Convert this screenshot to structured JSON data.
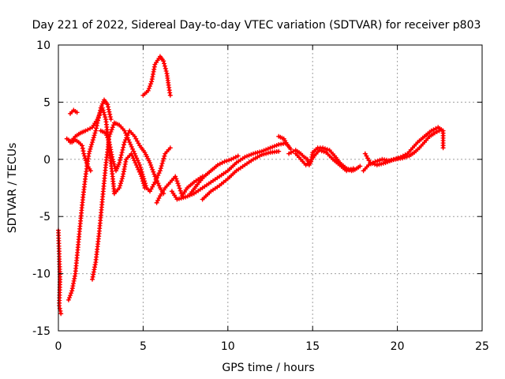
{
  "chart_data": {
    "type": "scatter",
    "title": "Day 221 of 2022, Sidereal Day-to-day VTEC variation (SDTVAR) for receiver p803",
    "xlabel": "GPS time / hours",
    "ylabel": "SDTVAR / TECUs",
    "xlim": [
      0,
      25
    ],
    "ylim": [
      -15,
      10
    ],
    "xticks": [
      0,
      5,
      10,
      15,
      20,
      25
    ],
    "yticks": [
      -15,
      -10,
      -5,
      0,
      5,
      10
    ],
    "xtick_labels": [
      "0",
      "5",
      "10",
      "15",
      "20",
      "25"
    ],
    "ytick_labels": [
      "-15",
      "-10",
      "-5",
      "0",
      "5",
      "10"
    ],
    "grid": true,
    "marker": "plus",
    "color": "#ff0000",
    "series": [
      {
        "name": "arc-early-1",
        "points": [
          [
            0.0,
            -6.2
          ],
          [
            0.05,
            -8.5
          ],
          [
            0.1,
            -10.5
          ],
          [
            0.05,
            -12.8
          ],
          [
            0.15,
            -13.5
          ]
        ]
      },
      {
        "name": "arc-early-2",
        "points": [
          [
            0.6,
            -12.3
          ],
          [
            0.8,
            -11.5
          ],
          [
            1.0,
            -10.0
          ],
          [
            1.2,
            -7.0
          ],
          [
            1.4,
            -4.0
          ],
          [
            1.6,
            -1.5
          ],
          [
            1.8,
            0.5
          ],
          [
            2.0,
            1.5
          ],
          [
            2.2,
            2.5
          ],
          [
            2.5,
            4.5
          ],
          [
            2.7,
            5.2
          ],
          [
            2.9,
            4.8
          ],
          [
            3.1,
            3.5
          ]
        ]
      },
      {
        "name": "arc-early-3",
        "points": [
          [
            0.5,
            1.8
          ],
          [
            0.8,
            1.5
          ],
          [
            1.0,
            1.7
          ],
          [
            1.2,
            1.5
          ],
          [
            1.4,
            1.2
          ],
          [
            1.5,
            0.5
          ],
          [
            1.7,
            -0.5
          ],
          [
            1.9,
            -1.0
          ]
        ]
      },
      {
        "name": "arc-early-4",
        "points": [
          [
            0.7,
            4.0
          ],
          [
            0.9,
            4.3
          ],
          [
            1.1,
            4.1
          ]
        ]
      },
      {
        "name": "arc-early-5",
        "points": [
          [
            0.7,
            1.5
          ],
          [
            1.0,
            2.0
          ],
          [
            1.3,
            2.3
          ],
          [
            1.6,
            2.5
          ],
          [
            2.0,
            2.8
          ],
          [
            2.3,
            3.5
          ],
          [
            2.6,
            4.5
          ],
          [
            2.8,
            3.5
          ],
          [
            3.0,
            1.0
          ],
          [
            3.2,
            -1.5
          ],
          [
            3.3,
            -3.0
          ],
          [
            3.6,
            -2.5
          ],
          [
            3.8,
            -1.5
          ],
          [
            4.0,
            0.0
          ],
          [
            4.3,
            0.5
          ],
          [
            4.6,
            -0.5
          ],
          [
            4.9,
            -1.5
          ],
          [
            5.1,
            -2.5
          ]
        ]
      },
      {
        "name": "arc-early-6",
        "points": [
          [
            2.0,
            -10.5
          ],
          [
            2.2,
            -9.0
          ],
          [
            2.4,
            -6.5
          ],
          [
            2.6,
            -3.5
          ],
          [
            2.8,
            -0.5
          ],
          [
            3.0,
            2.0
          ],
          [
            3.3,
            3.2
          ],
          [
            3.6,
            3.0
          ],
          [
            3.9,
            2.5
          ],
          [
            4.2,
            1.5
          ],
          [
            4.5,
            0.5
          ],
          [
            4.8,
            -0.5
          ],
          [
            5.0,
            -1.5
          ],
          [
            5.2,
            -2.5
          ],
          [
            5.4,
            -2.8
          ],
          [
            5.7,
            -2.0
          ],
          [
            6.0,
            -1.0
          ],
          [
            6.3,
            0.5
          ],
          [
            6.6,
            1.0
          ]
        ]
      },
      {
        "name": "arc-early-7",
        "points": [
          [
            2.5,
            2.5
          ],
          [
            2.8,
            2.3
          ],
          [
            3.0,
            1.5
          ],
          [
            3.2,
            0.0
          ],
          [
            3.4,
            -1.0
          ],
          [
            3.6,
            -0.3
          ],
          [
            3.9,
            1.5
          ],
          [
            4.2,
            2.5
          ],
          [
            4.5,
            2.0
          ],
          [
            4.8,
            1.2
          ],
          [
            5.1,
            0.6
          ],
          [
            5.4,
            -0.3
          ],
          [
            5.7,
            -1.5
          ],
          [
            6.0,
            -2.5
          ],
          [
            6.2,
            -3.0
          ]
        ]
      },
      {
        "name": "arc-mid-1",
        "points": [
          [
            5.0,
            5.6
          ],
          [
            5.3,
            6.0
          ],
          [
            5.5,
            6.8
          ],
          [
            5.7,
            8.3
          ],
          [
            6.0,
            9.0
          ],
          [
            6.2,
            8.6
          ],
          [
            6.4,
            7.5
          ],
          [
            6.5,
            6.5
          ],
          [
            6.6,
            5.6
          ]
        ]
      },
      {
        "name": "arc-mid-2",
        "points": [
          [
            5.8,
            -3.8
          ],
          [
            6.0,
            -3.2
          ],
          [
            6.3,
            -2.5
          ],
          [
            6.6,
            -2.0
          ],
          [
            6.9,
            -1.5
          ],
          [
            7.1,
            -2.3
          ],
          [
            7.3,
            -3.2
          ],
          [
            7.6,
            -2.5
          ],
          [
            8.0,
            -2.0
          ],
          [
            8.5,
            -1.5
          ]
        ]
      },
      {
        "name": "arc-mid-3",
        "points": [
          [
            6.7,
            -2.8
          ],
          [
            7.0,
            -3.5
          ],
          [
            7.5,
            -3.3
          ],
          [
            8.0,
            -3.0
          ],
          [
            8.5,
            -2.5
          ],
          [
            9.0,
            -2.0
          ],
          [
            9.5,
            -1.5
          ],
          [
            10.0,
            -1.0
          ],
          [
            10.5,
            -0.3
          ],
          [
            11.0,
            0.2
          ],
          [
            11.5,
            0.5
          ],
          [
            12.0,
            0.7
          ],
          [
            12.5,
            1.0
          ],
          [
            13.0,
            1.3
          ],
          [
            13.4,
            1.4
          ]
        ]
      },
      {
        "name": "arc-mid-4",
        "points": [
          [
            7.8,
            -3.0
          ],
          [
            8.2,
            -2.2
          ],
          [
            8.6,
            -1.5
          ],
          [
            9.0,
            -1.0
          ],
          [
            9.4,
            -0.5
          ],
          [
            9.8,
            -0.2
          ],
          [
            10.2,
            0.0
          ],
          [
            10.6,
            0.3
          ]
        ]
      },
      {
        "name": "arc-mid-5",
        "points": [
          [
            8.5,
            -3.5
          ],
          [
            9.0,
            -2.8
          ],
          [
            9.5,
            -2.3
          ],
          [
            10.0,
            -1.7
          ],
          [
            10.5,
            -1.0
          ],
          [
            11.0,
            -0.5
          ],
          [
            11.5,
            0.0
          ],
          [
            12.0,
            0.4
          ],
          [
            12.5,
            0.6
          ],
          [
            13.0,
            0.7
          ]
        ]
      },
      {
        "name": "arc-late-1",
        "points": [
          [
            13.0,
            2.0
          ],
          [
            13.3,
            1.8
          ],
          [
            13.5,
            1.3
          ],
          [
            13.7,
            0.9
          ]
        ]
      },
      {
        "name": "arc-late-2",
        "points": [
          [
            13.6,
            0.5
          ],
          [
            14.0,
            0.8
          ],
          [
            14.3,
            0.5
          ],
          [
            14.5,
            0.2
          ],
          [
            14.7,
            0.0
          ],
          [
            14.8,
            -0.5
          ],
          [
            14.9,
            -0.2
          ],
          [
            15.0,
            0.6
          ],
          [
            15.3,
            1.0
          ],
          [
            15.6,
            1.0
          ],
          [
            16.0,
            0.8
          ],
          [
            16.3,
            0.3
          ],
          [
            16.6,
            -0.3
          ],
          [
            17.0,
            -0.8
          ],
          [
            17.3,
            -1.0
          ],
          [
            17.5,
            -0.9
          ],
          [
            17.8,
            -0.6
          ]
        ]
      },
      {
        "name": "arc-late-3",
        "points": [
          [
            14.0,
            0.5
          ],
          [
            14.3,
            0.0
          ],
          [
            14.6,
            -0.5
          ],
          [
            14.8,
            -0.3
          ],
          [
            15.1,
            0.3
          ],
          [
            15.4,
            0.8
          ],
          [
            15.8,
            0.6
          ],
          [
            16.2,
            0.0
          ],
          [
            16.6,
            -0.5
          ],
          [
            17.0,
            -1.0
          ],
          [
            17.4,
            -0.8
          ]
        ]
      },
      {
        "name": "arc-late-4",
        "points": [
          [
            18.0,
            -1.0
          ],
          [
            18.3,
            -0.5
          ],
          [
            18.7,
            -0.2
          ],
          [
            19.1,
            0.0
          ],
          [
            19.5,
            -0.1
          ],
          [
            19.9,
            0.0
          ],
          [
            20.3,
            0.1
          ],
          [
            20.7,
            0.3
          ],
          [
            21.0,
            0.6
          ],
          [
            21.3,
            1.0
          ],
          [
            21.6,
            1.5
          ],
          [
            21.9,
            2.0
          ],
          [
            22.2,
            2.3
          ],
          [
            22.6,
            2.6
          ]
        ]
      },
      {
        "name": "arc-late-5",
        "points": [
          [
            18.1,
            0.5
          ],
          [
            18.4,
            -0.3
          ],
          [
            18.8,
            -0.5
          ],
          [
            19.3,
            -0.3
          ],
          [
            19.8,
            0.0
          ],
          [
            20.2,
            0.2
          ],
          [
            20.6,
            0.5
          ],
          [
            20.9,
            1.0
          ],
          [
            21.2,
            1.5
          ],
          [
            21.6,
            2.0
          ],
          [
            22.0,
            2.5
          ],
          [
            22.4,
            2.8
          ],
          [
            22.7,
            2.5
          ],
          [
            22.7,
            1.0
          ]
        ]
      }
    ]
  }
}
